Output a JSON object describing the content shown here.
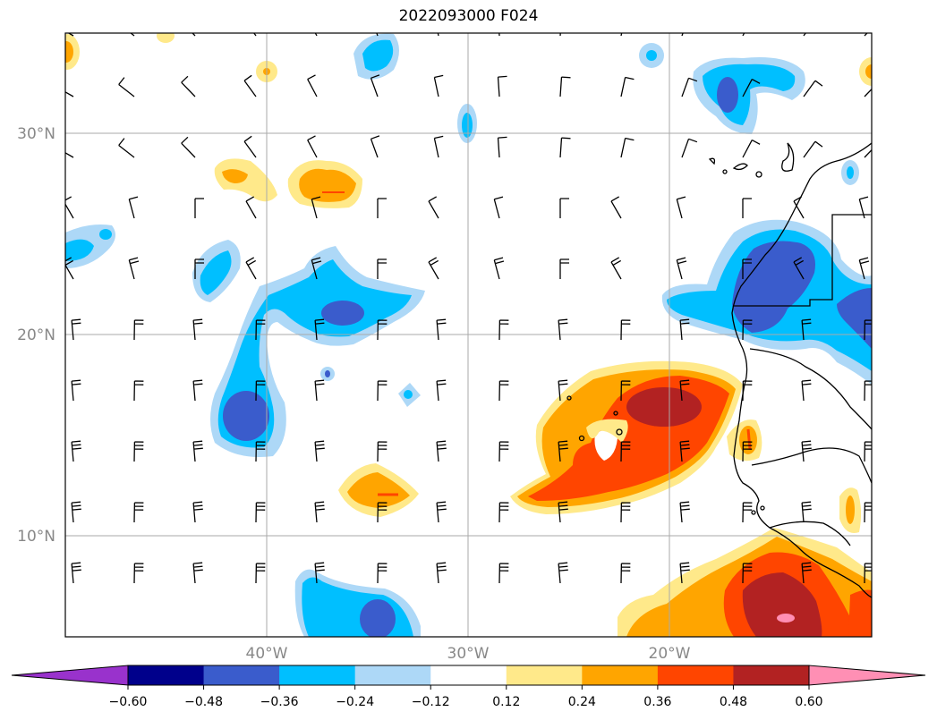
{
  "title": "2022093000 F024",
  "map": {
    "lat_labels": [
      "30°N",
      "20°N",
      "10°N"
    ],
    "lon_labels": [
      "40°W",
      "30°W",
      "20°W"
    ],
    "label_color": "#888888"
  },
  "colorbar": {
    "ticks": [
      "−0.60",
      "−0.48",
      "−0.36",
      "−0.24",
      "−0.12",
      "0.12",
      "0.24",
      "0.36",
      "0.48",
      "0.60"
    ],
    "under_color": "#9932cc",
    "over_color": "#ff8fb4",
    "colors": [
      "#00008b",
      "#3a5ccc",
      "#00bfff",
      "#add8f7",
      "#ffffff",
      "#ffe98a",
      "#ffa500",
      "#ff4500",
      "#b22222"
    ]
  }
}
